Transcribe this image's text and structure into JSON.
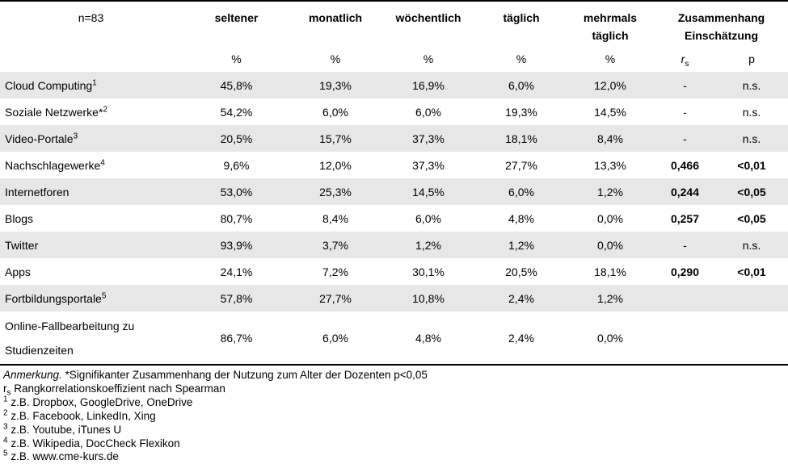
{
  "table": {
    "n_label": "n=83",
    "columns": [
      "seltener",
      "monatlich",
      "wöchentlich",
      "täglich",
      "mehrmals\ntäglich"
    ],
    "zusammenhang_header": "Zusammenhang\nEinschätzung",
    "percent_symbol": "%",
    "rs_symbol": {
      "base": "r",
      "sub": "s"
    },
    "p_symbol": "p",
    "rows": [
      {
        "label": "Cloud Computing",
        "sup": "1",
        "values": [
          "45,8%",
          "19,3%",
          "16,9%",
          "6,0%",
          "12,0%"
        ],
        "rs": "-",
        "p": "n.s.",
        "bold": false
      },
      {
        "label": "Soziale Netzwerke*",
        "sup": "2",
        "values": [
          "54,2%",
          "6,0%",
          "6,0%",
          "19,3%",
          "14,5%"
        ],
        "rs": "-",
        "p": "n.s.",
        "bold": false
      },
      {
        "label": "Video-Portale",
        "sup": "3",
        "values": [
          "20,5%",
          "15,7%",
          "37,3%",
          "18,1%",
          "8,4%"
        ],
        "rs": "-",
        "p": "n.s.",
        "bold": false
      },
      {
        "label": "Nachschlagewerke",
        "sup": "4",
        "values": [
          "9,6%",
          "12,0%",
          "37,3%",
          "27,7%",
          "13,3%"
        ],
        "rs": "0,466",
        "p": "<0,01",
        "bold": true
      },
      {
        "label": "Internetforen",
        "sup": "",
        "values": [
          "53,0%",
          "25,3%",
          "14,5%",
          "6,0%",
          "1,2%"
        ],
        "rs": "0,244",
        "p": "<0,05",
        "bold": true
      },
      {
        "label": "Blogs",
        "sup": "",
        "values": [
          "80,7%",
          "8,4%",
          "6,0%",
          "4,8%",
          "0,0%"
        ],
        "rs": "0,257",
        "p": "<0,05",
        "bold": true
      },
      {
        "label": "Twitter",
        "sup": "",
        "values": [
          "93,9%",
          "3,7%",
          "1,2%",
          "1,2%",
          "0,0%"
        ],
        "rs": "-",
        "p": "n.s.",
        "bold": false
      },
      {
        "label": "Apps",
        "sup": "",
        "values": [
          "24,1%",
          "7,2%",
          "30,1%",
          "20,5%",
          "18,1%"
        ],
        "rs": "0,290",
        "p": "<0,01",
        "bold": true
      },
      {
        "label": "Fortbildungsportale",
        "sup": "5",
        "values": [
          "57,8%",
          "27,7%",
          "10,8%",
          "2,4%",
          "1,2%"
        ],
        "rs": "",
        "p": "",
        "bold": false
      },
      {
        "label": "Online-Fallbearbeitung zu\nStudienzeiten",
        "sup": "",
        "values": [
          "86,7%",
          "6,0%",
          "4,8%",
          "2,4%",
          "0,0%"
        ],
        "rs": "",
        "p": "",
        "bold": false
      }
    ]
  },
  "notes": {
    "anmerkung_italic": "Anmerkung.",
    "anmerkung_rest": " *Signifikanter Zusammenhang der Nutzung zum Alter der Dozenten p<0,05",
    "spearman_base": "r",
    "spearman_sub": "s",
    "spearman_text": " Rangkorrelationskoeffizient nach Spearman",
    "footnotes": [
      {
        "sup": "1",
        "text": " z.B. Dropbox, GoogleDrive, OneDrive"
      },
      {
        "sup": "2",
        "text": " z.B. Facebook, LinkedIn, Xing"
      },
      {
        "sup": "3",
        "text": " z.B. Youtube, iTunes U"
      },
      {
        "sup": "4",
        "text": " z.B. Wikipedia, DocCheck Flexikon"
      },
      {
        "sup": "5",
        "text": " z.B. www.cme-kurs.de"
      }
    ]
  },
  "colors": {
    "zebra_row": "#e7e7e7",
    "rule": "#000000",
    "text": "#000000"
  }
}
